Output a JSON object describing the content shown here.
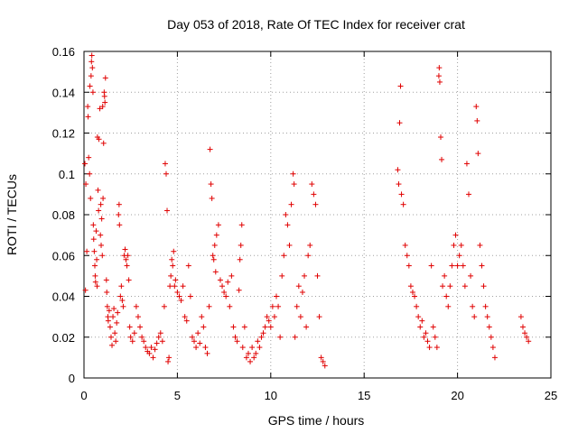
{
  "chart_data": {
    "type": "scatter",
    "title": "Day 053 of 2018, Rate Of TEC Index for receiver crat",
    "xlabel": "GPS time / hours",
    "ylabel": "ROTI / TECUs",
    "xlim": [
      0,
      25
    ],
    "ylim": [
      0,
      0.16
    ],
    "xticks": [
      0,
      5,
      10,
      15,
      20,
      25
    ],
    "xtick_labels": [
      "0",
      "5",
      "10",
      "15",
      "20",
      "25"
    ],
    "yticks": [
      0,
      0.02,
      0.04,
      0.06,
      0.08,
      0.1,
      0.12,
      0.14,
      0.16
    ],
    "ytick_labels": [
      "0",
      "0.02",
      "0.04",
      "0.06",
      "0.08",
      "0.1",
      "0.12",
      "0.14",
      "0.16"
    ],
    "grid": true,
    "marker": "+",
    "marker_color": "#e00000",
    "series": [
      {
        "name": "ROTI",
        "points": [
          [
            0.05,
            0.105
          ],
          [
            0.08,
            0.043
          ],
          [
            0.1,
            0.095
          ],
          [
            0.15,
            0.062
          ],
          [
            0.2,
            0.133
          ],
          [
            0.22,
            0.128
          ],
          [
            0.25,
            0.108
          ],
          [
            0.3,
            0.1
          ],
          [
            0.32,
            0.143
          ],
          [
            0.35,
            0.088
          ],
          [
            0.38,
            0.148
          ],
          [
            0.4,
            0.155
          ],
          [
            0.42,
            0.158
          ],
          [
            0.45,
            0.152
          ],
          [
            0.48,
            0.14
          ],
          [
            0.5,
            0.075
          ],
          [
            0.52,
            0.068
          ],
          [
            0.55,
            0.062
          ],
          [
            0.58,
            0.055
          ],
          [
            0.6,
            0.05
          ],
          [
            0.62,
            0.047
          ],
          [
            0.65,
            0.072
          ],
          [
            0.68,
            0.058
          ],
          [
            0.7,
            0.045
          ],
          [
            0.72,
            0.118
          ],
          [
            0.75,
            0.092
          ],
          [
            0.78,
            0.082
          ],
          [
            0.8,
            0.117
          ],
          [
            0.85,
            0.132
          ],
          [
            0.88,
            0.07
          ],
          [
            0.9,
            0.085
          ],
          [
            0.92,
            0.065
          ],
          [
            0.95,
            0.078
          ],
          [
            0.98,
            0.06
          ],
          [
            1.0,
            0.133
          ],
          [
            1.02,
            0.088
          ],
          [
            1.05,
            0.115
          ],
          [
            1.08,
            0.14
          ],
          [
            1.1,
            0.138
          ],
          [
            1.12,
            0.135
          ],
          [
            1.15,
            0.147
          ],
          [
            1.2,
            0.048
          ],
          [
            1.22,
            0.042
          ],
          [
            1.25,
            0.035
          ],
          [
            1.28,
            0.03
          ],
          [
            1.3,
            0.028
          ],
          [
            1.35,
            0.033
          ],
          [
            1.4,
            0.025
          ],
          [
            1.45,
            0.02
          ],
          [
            1.5,
            0.016
          ],
          [
            1.55,
            0.03
          ],
          [
            1.6,
            0.034
          ],
          [
            1.65,
            0.022
          ],
          [
            1.7,
            0.018
          ],
          [
            1.75,
            0.027
          ],
          [
            1.8,
            0.032
          ],
          [
            1.85,
            0.08
          ],
          [
            1.88,
            0.085
          ],
          [
            1.9,
            0.075
          ],
          [
            1.95,
            0.04
          ],
          [
            2.0,
            0.045
          ],
          [
            2.05,
            0.038
          ],
          [
            2.1,
            0.035
          ],
          [
            2.15,
            0.06
          ],
          [
            2.2,
            0.063
          ],
          [
            2.25,
            0.058
          ],
          [
            2.3,
            0.055
          ],
          [
            2.35,
            0.06
          ],
          [
            2.4,
            0.048
          ],
          [
            2.45,
            0.025
          ],
          [
            2.5,
            0.02
          ],
          [
            2.6,
            0.018
          ],
          [
            2.7,
            0.022
          ],
          [
            2.8,
            0.035
          ],
          [
            2.9,
            0.03
          ],
          [
            3.0,
            0.025
          ],
          [
            3.1,
            0.02
          ],
          [
            3.2,
            0.018
          ],
          [
            3.3,
            0.015
          ],
          [
            3.4,
            0.013
          ],
          [
            3.5,
            0.012
          ],
          [
            3.6,
            0.015
          ],
          [
            3.7,
            0.01
          ],
          [
            3.8,
            0.014
          ],
          [
            3.9,
            0.017
          ],
          [
            4.0,
            0.02
          ],
          [
            4.1,
            0.022
          ],
          [
            4.2,
            0.018
          ],
          [
            4.3,
            0.035
          ],
          [
            4.35,
            0.105
          ],
          [
            4.4,
            0.1
          ],
          [
            4.45,
            0.082
          ],
          [
            4.5,
            0.008
          ],
          [
            4.55,
            0.01
          ],
          [
            4.6,
            0.045
          ],
          [
            4.65,
            0.05
          ],
          [
            4.7,
            0.058
          ],
          [
            4.75,
            0.055
          ],
          [
            4.8,
            0.062
          ],
          [
            4.85,
            0.045
          ],
          [
            4.9,
            0.048
          ],
          [
            5.0,
            0.042
          ],
          [
            5.1,
            0.04
          ],
          [
            5.2,
            0.038
          ],
          [
            5.3,
            0.045
          ],
          [
            5.4,
            0.03
          ],
          [
            5.5,
            0.028
          ],
          [
            5.6,
            0.055
          ],
          [
            5.7,
            0.04
          ],
          [
            5.8,
            0.02
          ],
          [
            5.9,
            0.018
          ],
          [
            6.0,
            0.015
          ],
          [
            6.1,
            0.022
          ],
          [
            6.2,
            0.017
          ],
          [
            6.3,
            0.03
          ],
          [
            6.4,
            0.025
          ],
          [
            6.5,
            0.015
          ],
          [
            6.6,
            0.012
          ],
          [
            6.7,
            0.035
          ],
          [
            6.75,
            0.112
          ],
          [
            6.8,
            0.095
          ],
          [
            6.85,
            0.088
          ],
          [
            6.9,
            0.06
          ],
          [
            6.95,
            0.058
          ],
          [
            7.0,
            0.065
          ],
          [
            7.05,
            0.052
          ],
          [
            7.1,
            0.07
          ],
          [
            7.2,
            0.075
          ],
          [
            7.3,
            0.048
          ],
          [
            7.4,
            0.045
          ],
          [
            7.5,
            0.042
          ],
          [
            7.6,
            0.04
          ],
          [
            7.7,
            0.047
          ],
          [
            7.8,
            0.035
          ],
          [
            7.9,
            0.05
          ],
          [
            8.0,
            0.025
          ],
          [
            8.1,
            0.02
          ],
          [
            8.2,
            0.018
          ],
          [
            8.3,
            0.043
          ],
          [
            8.35,
            0.058
          ],
          [
            8.4,
            0.065
          ],
          [
            8.45,
            0.075
          ],
          [
            8.5,
            0.015
          ],
          [
            8.6,
            0.025
          ],
          [
            8.7,
            0.01
          ],
          [
            8.8,
            0.012
          ],
          [
            8.9,
            0.008
          ],
          [
            9.0,
            0.015
          ],
          [
            9.1,
            0.01
          ],
          [
            9.2,
            0.012
          ],
          [
            9.3,
            0.018
          ],
          [
            9.4,
            0.015
          ],
          [
            9.5,
            0.02
          ],
          [
            9.6,
            0.022
          ],
          [
            9.7,
            0.025
          ],
          [
            9.8,
            0.03
          ],
          [
            9.9,
            0.028
          ],
          [
            10.0,
            0.025
          ],
          [
            10.1,
            0.035
          ],
          [
            10.2,
            0.03
          ],
          [
            10.3,
            0.04
          ],
          [
            10.4,
            0.035
          ],
          [
            10.5,
            0.02
          ],
          [
            10.6,
            0.05
          ],
          [
            10.7,
            0.06
          ],
          [
            10.8,
            0.08
          ],
          [
            10.9,
            0.075
          ],
          [
            11.0,
            0.065
          ],
          [
            11.1,
            0.085
          ],
          [
            11.2,
            0.1
          ],
          [
            11.25,
            0.095
          ],
          [
            11.3,
            0.02
          ],
          [
            11.4,
            0.035
          ],
          [
            11.5,
            0.045
          ],
          [
            11.6,
            0.03
          ],
          [
            11.7,
            0.042
          ],
          [
            11.8,
            0.05
          ],
          [
            11.9,
            0.025
          ],
          [
            12.0,
            0.06
          ],
          [
            12.1,
            0.065
          ],
          [
            12.2,
            0.095
          ],
          [
            12.3,
            0.09
          ],
          [
            12.4,
            0.085
          ],
          [
            12.5,
            0.05
          ],
          [
            12.6,
            0.03
          ],
          [
            12.7,
            0.01
          ],
          [
            12.8,
            0.008
          ],
          [
            12.9,
            0.006
          ],
          [
            16.8,
            0.102
          ],
          [
            16.85,
            0.095
          ],
          [
            16.9,
            0.125
          ],
          [
            16.95,
            0.143
          ],
          [
            17.0,
            0.09
          ],
          [
            17.1,
            0.085
          ],
          [
            17.2,
            0.065
          ],
          [
            17.3,
            0.06
          ],
          [
            17.4,
            0.055
          ],
          [
            17.5,
            0.045
          ],
          [
            17.6,
            0.042
          ],
          [
            17.7,
            0.04
          ],
          [
            17.8,
            0.035
          ],
          [
            17.9,
            0.03
          ],
          [
            18.0,
            0.025
          ],
          [
            18.1,
            0.028
          ],
          [
            18.2,
            0.02
          ],
          [
            18.3,
            0.022
          ],
          [
            18.4,
            0.018
          ],
          [
            18.5,
            0.015
          ],
          [
            18.6,
            0.055
          ],
          [
            18.7,
            0.025
          ],
          [
            18.8,
            0.02
          ],
          [
            18.9,
            0.015
          ],
          [
            19.0,
            0.148
          ],
          [
            19.02,
            0.152
          ],
          [
            19.05,
            0.145
          ],
          [
            19.1,
            0.118
          ],
          [
            19.15,
            0.107
          ],
          [
            19.2,
            0.045
          ],
          [
            19.3,
            0.05
          ],
          [
            19.4,
            0.04
          ],
          [
            19.5,
            0.035
          ],
          [
            19.6,
            0.045
          ],
          [
            19.7,
            0.055
          ],
          [
            19.8,
            0.065
          ],
          [
            19.9,
            0.07
          ],
          [
            20.0,
            0.055
          ],
          [
            20.1,
            0.06
          ],
          [
            20.2,
            0.065
          ],
          [
            20.3,
            0.055
          ],
          [
            20.4,
            0.045
          ],
          [
            20.5,
            0.105
          ],
          [
            20.6,
            0.09
          ],
          [
            20.7,
            0.05
          ],
          [
            20.8,
            0.035
          ],
          [
            20.9,
            0.03
          ],
          [
            21.0,
            0.133
          ],
          [
            21.05,
            0.126
          ],
          [
            21.1,
            0.11
          ],
          [
            21.2,
            0.065
          ],
          [
            21.3,
            0.055
          ],
          [
            21.4,
            0.045
          ],
          [
            21.5,
            0.035
          ],
          [
            21.6,
            0.03
          ],
          [
            21.7,
            0.025
          ],
          [
            21.8,
            0.02
          ],
          [
            21.9,
            0.015
          ],
          [
            22.0,
            0.01
          ],
          [
            23.4,
            0.03
          ],
          [
            23.5,
            0.025
          ],
          [
            23.6,
            0.022
          ],
          [
            23.7,
            0.02
          ],
          [
            23.8,
            0.018
          ]
        ]
      }
    ]
  }
}
